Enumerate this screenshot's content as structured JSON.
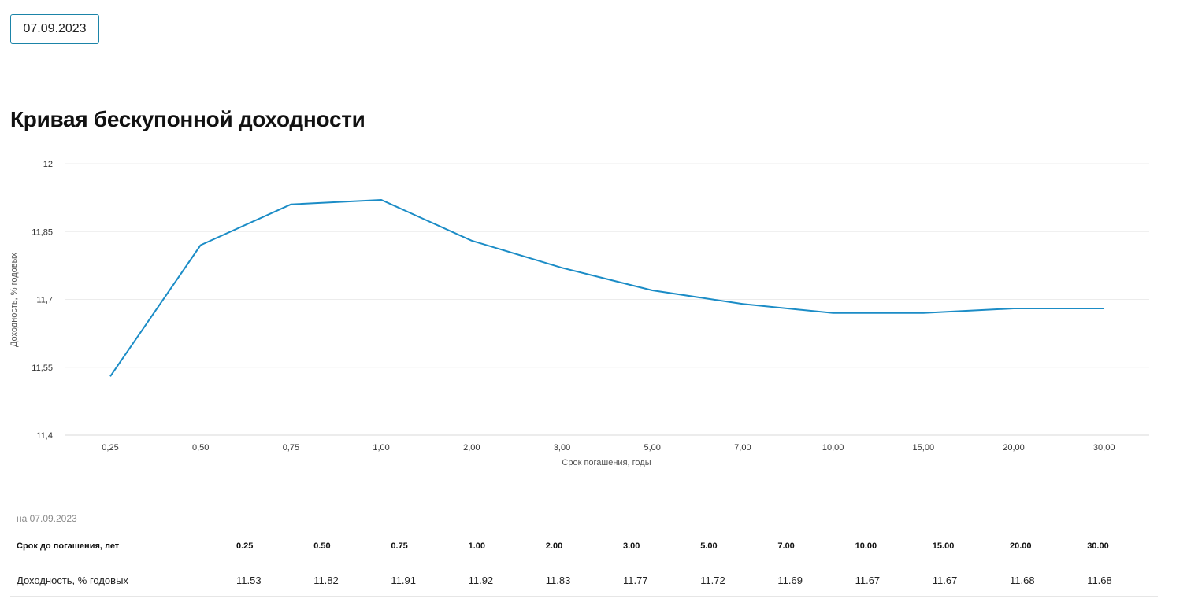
{
  "date_picker": {
    "value": "07.09.2023"
  },
  "page": {
    "title": "Кривая бескупонной доходности"
  },
  "chart_data": {
    "type": "line",
    "categories": [
      "0,25",
      "0,50",
      "0,75",
      "1,00",
      "2,00",
      "3,00",
      "5,00",
      "7,00",
      "10,00",
      "15,00",
      "20,00",
      "30,00"
    ],
    "series": [
      {
        "values": [
          11.53,
          11.82,
          11.91,
          11.92,
          11.83,
          11.77,
          11.72,
          11.69,
          11.67,
          11.67,
          11.68,
          11.68
        ]
      }
    ],
    "yticks": [
      "11,4",
      "11,55",
      "11,7",
      "11,85",
      "12"
    ],
    "ylim": [
      11.4,
      12
    ],
    "xlabel": "Срок погашения, годы",
    "ylabel": "Доходность, % годовых",
    "grid": true,
    "color": "#1b8cc6"
  },
  "table": {
    "as_of": "на 07.09.2023",
    "header_label": "Срок до погашения, лет",
    "terms": [
      "0.25",
      "0.50",
      "0.75",
      "1.00",
      "2.00",
      "3.00",
      "5.00",
      "7.00",
      "10.00",
      "15.00",
      "20.00",
      "30.00"
    ],
    "values_label": "Доходность, % годовых",
    "values": [
      "11.53",
      "11.82",
      "11.91",
      "11.92",
      "11.83",
      "11.77",
      "11.72",
      "11.69",
      "11.67",
      "11.67",
      "11.68",
      "11.68"
    ]
  }
}
